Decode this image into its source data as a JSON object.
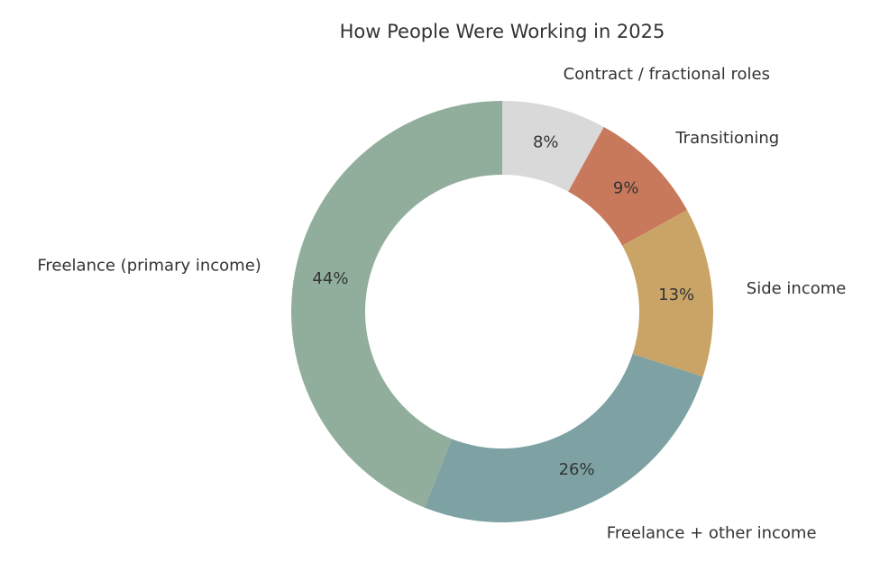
{
  "chart_data": {
    "type": "pie",
    "title": "How People Were Working in 2025",
    "donut": true,
    "slices": [
      {
        "label": "Contract / fractional roles",
        "value": 8,
        "pct_label": "8%",
        "color": "#d9d9d9"
      },
      {
        "label": "Transitioning",
        "value": 9,
        "pct_label": "9%",
        "color": "#c8795b"
      },
      {
        "label": "Side income",
        "value": 13,
        "pct_label": "13%",
        "color": "#c9a466"
      },
      {
        "label": "Freelance + other income",
        "value": 26,
        "pct_label": "26%",
        "color": "#7ea2a3"
      },
      {
        "label": "Freelance (primary income)",
        "value": 44,
        "pct_label": "44%",
        "color": "#91ae9d"
      }
    ]
  }
}
